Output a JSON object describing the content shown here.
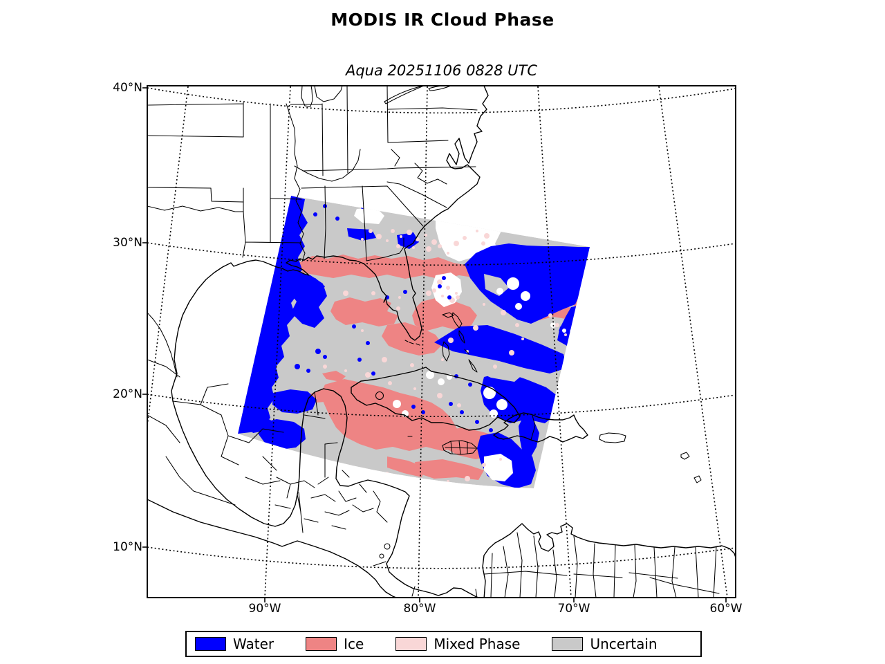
{
  "figure": {
    "title": "MODIS IR Cloud Phase",
    "subtitle": "Aqua 20251106 0828 UTC"
  },
  "axes": {
    "yticks": [
      "40°N",
      "30°N",
      "20°N",
      "10°N"
    ],
    "xticks": [
      "90°W",
      "80°W",
      "70°W",
      "60°W"
    ]
  },
  "legend": {
    "items": [
      {
        "label": "Water",
        "color": "#0000ff"
      },
      {
        "label": "Ice",
        "color": "#ee8484"
      },
      {
        "label": "Mixed Phase",
        "color": "#f9d7d7"
      },
      {
        "label": "Uncertain",
        "color": "#c9c9c9"
      }
    ]
  },
  "colors": {
    "water": "#0000ff",
    "ice": "#ee8484",
    "mixed": "#f9d7d7",
    "uncertain": "#c9c9c9",
    "coastline": "#000000",
    "background": "#ffffff"
  }
}
